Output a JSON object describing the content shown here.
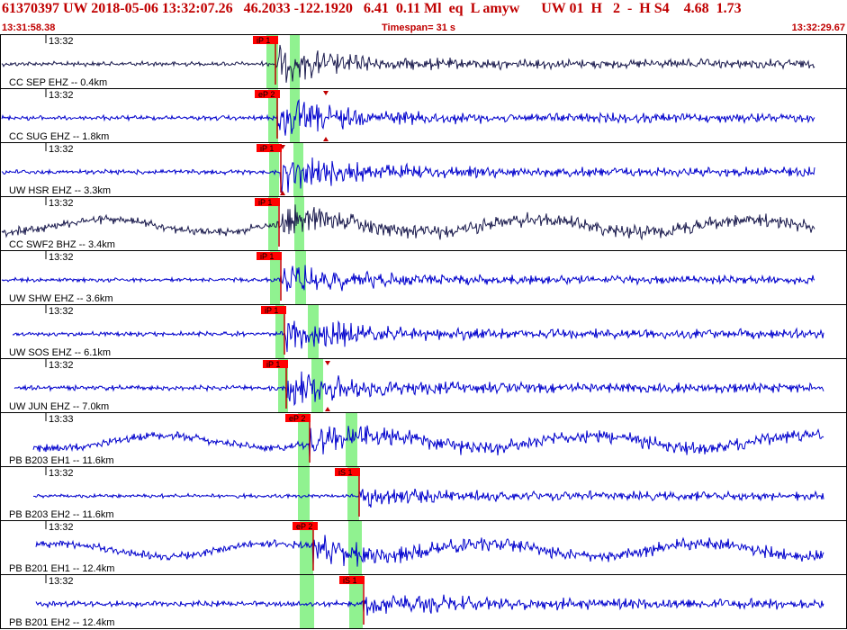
{
  "header": {
    "event_line": "61370397 UW 2018-05-06 13:32:07.26   46.2033 -122.1920   6.41  0.11 Ml  eq  L amyw      UW 01  H   2  -  H S4    4.68  1.73",
    "start_time": "13:31:58.38",
    "timespan": "Timespan=  31 s",
    "end_time": "13:32:29.67"
  },
  "colors": {
    "accent_red": "#c00000",
    "pick_box": "#ff0000",
    "wave_blue": "#0000cc",
    "wave_dark": "#1a1a4d",
    "window_green": "#7cf07c"
  },
  "traces": [
    {
      "station": "CC SEP EHZ -- 0.4km",
      "time": "13:32",
      "color": "dark",
      "pick": "iP 1",
      "amp": 0.9,
      "noise": 0.35,
      "start": 0
    },
    {
      "station": "CC SUG EHZ -- 1.8km",
      "time": "13:32",
      "color": "blue",
      "pick": "eP 2",
      "amp": 1.0,
      "noise": 0.35,
      "start": 0
    },
    {
      "station": "UW HSR EHZ -- 3.3km",
      "time": "13:32",
      "color": "blue",
      "pick": "iP 1",
      "amp": 1.0,
      "noise": 0.35,
      "start": 0
    },
    {
      "station": "CC SWF2 BHZ -- 3.4km",
      "time": "13:32",
      "color": "dark",
      "pick": "iP 1",
      "amp": 0.6,
      "noise": 1.0,
      "start": 0
    },
    {
      "station": "UW SHW EHZ -- 3.6km",
      "time": "13:32",
      "color": "blue",
      "pick": "iP 1",
      "amp": 1.0,
      "noise": 0.25,
      "start": 0
    },
    {
      "station": "UW SOS EHZ -- 6.1km",
      "time": "13:32",
      "color": "blue",
      "pick": "iP 1",
      "amp": 1.0,
      "noise": 0.35,
      "start": 12
    },
    {
      "station": "UW JUN EHZ -- 7.0km",
      "time": "13:32",
      "color": "blue",
      "pick": "iP 1",
      "amp": 1.0,
      "noise": 0.4,
      "start": 14
    },
    {
      "station": "PB B203 EH1 -- 11.6km",
      "time": "13:33",
      "color": "blue",
      "pick": "eP 2",
      "amp": 0.6,
      "noise": 1.0,
      "start": 35
    },
    {
      "station": "PB B203 EH2 -- 11.6km",
      "time": "13:32",
      "color": "blue",
      "pick": "iS 1",
      "amp": 0.5,
      "noise": 0.25,
      "start": 35
    },
    {
      "station": "PB B201 EH1 -- 12.4km",
      "time": "13:32",
      "color": "blue",
      "pick": "eP 2",
      "amp": 0.6,
      "noise": 0.85,
      "start": 38
    },
    {
      "station": "PB B201 EH2 -- 12.4km",
      "time": "13:32",
      "color": "blue",
      "pick": "iS 1",
      "amp": 0.6,
      "noise": 0.55,
      "start": 38
    }
  ]
}
